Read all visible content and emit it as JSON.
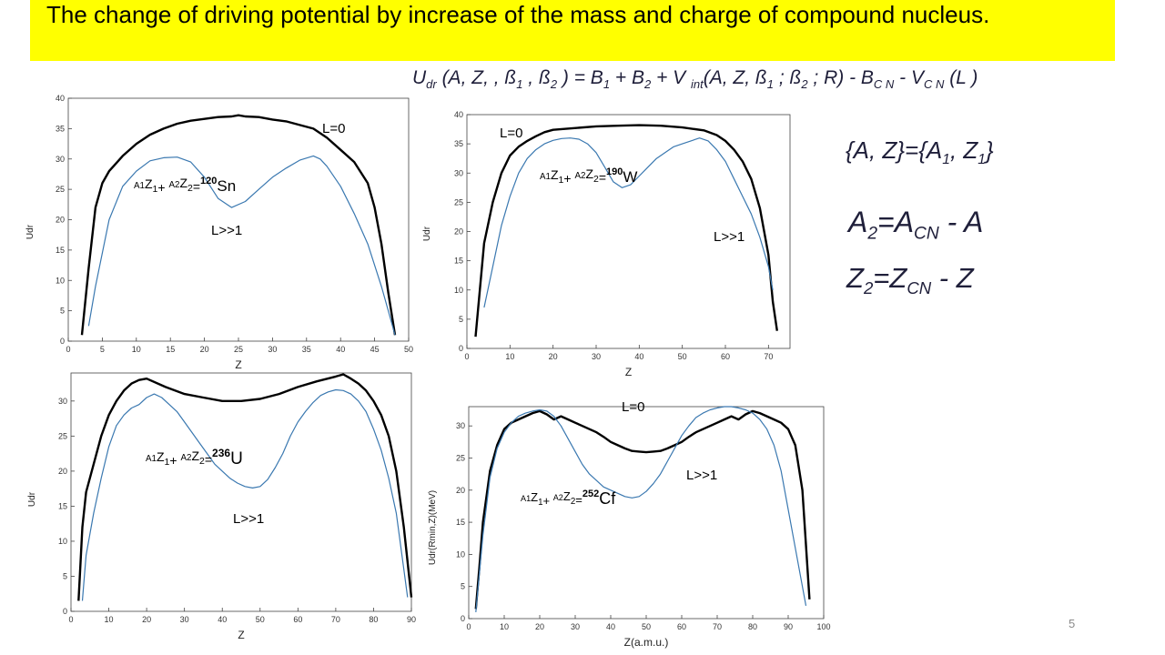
{
  "slide": {
    "title": "The change of driving potential by increase of the mass and charge of compound nucleus.",
    "formula": "U dr (A, Z, , ß1 , ß2 ) = B1 + B2 + V int(A, Z, ß1 ; ß2 ; R) - BC N - VC N (L )",
    "set_relation": "{A, Z}={A1, Z1}",
    "a2_relation": "A2=ACN - A",
    "z2_relation": "Z2=ZCN - Z",
    "page_number": "5"
  },
  "colors": {
    "banner": "#ffff00",
    "l0_line": "#000000",
    "lbig_line": "#3a78b0",
    "formula_text": "#1f1f3a"
  },
  "chart_data": [
    {
      "type": "line",
      "id": "sn",
      "xlabel": "Z",
      "ylabel": "Udr",
      "xlim": [
        0,
        50
      ],
      "ylim": [
        0,
        40
      ],
      "xticks": [
        0,
        5,
        10,
        15,
        20,
        25,
        30,
        35,
        40,
        45,
        50
      ],
      "yticks": [
        0,
        5,
        10,
        15,
        20,
        25,
        30,
        35,
        40
      ],
      "reaction": {
        "prefix": "A1Z1+ A2Z2=",
        "mass": "120",
        "element": "Sn"
      },
      "l0_label": "L=0",
      "lbig_label": "L>>1",
      "series": [
        {
          "name": "L=0",
          "x": [
            2,
            3,
            4,
            5,
            6,
            8,
            10,
            12,
            14,
            16,
            18,
            20,
            22,
            24,
            25,
            26,
            28,
            30,
            32,
            34,
            36,
            38,
            40,
            42,
            44,
            45,
            46,
            47,
            48
          ],
          "y": [
            1,
            12,
            22,
            26,
            28,
            30.5,
            32.5,
            34,
            35,
            35.8,
            36.3,
            36.6,
            36.9,
            37,
            37.2,
            37,
            36.9,
            36.5,
            36.2,
            35.6,
            35,
            33.5,
            31.5,
            29.5,
            26,
            22,
            16,
            8,
            1
          ]
        },
        {
          "name": "L>>1",
          "x": [
            3,
            4,
            6,
            8,
            10,
            12,
            14,
            16,
            18,
            20,
            22,
            24,
            26,
            28,
            30,
            32,
            34,
            36,
            37,
            38,
            40,
            42,
            44,
            46,
            47,
            48
          ],
          "y": [
            2.5,
            9,
            20,
            25.5,
            28,
            29.7,
            30.2,
            30.3,
            29.5,
            27,
            23.5,
            22,
            23,
            25,
            27,
            28.5,
            29.8,
            30.5,
            30,
            28.8,
            25.5,
            21,
            16,
            9,
            5,
            1
          ]
        }
      ]
    },
    {
      "type": "line",
      "id": "w",
      "xlabel": "Z",
      "ylabel": "Udr",
      "xlim": [
        0,
        75
      ],
      "ylim": [
        0,
        40
      ],
      "xticks": [
        0,
        10,
        20,
        30,
        40,
        50,
        60,
        70
      ],
      "yticks": [
        0,
        5,
        10,
        15,
        20,
        25,
        30,
        35,
        40
      ],
      "reaction": {
        "prefix": "A1Z1+ A2Z2=",
        "mass": "190",
        "element": "W"
      },
      "l0_label": "L=0",
      "lbig_label": "L>>1",
      "series": [
        {
          "name": "L=0",
          "x": [
            2,
            3,
            4,
            6,
            8,
            10,
            12,
            14,
            16,
            18,
            20,
            25,
            30,
            35,
            40,
            45,
            50,
            55,
            58,
            60,
            62,
            64,
            66,
            68,
            70,
            71,
            72
          ],
          "y": [
            2,
            10,
            18,
            25,
            30,
            33,
            34.5,
            35.5,
            36.3,
            37,
            37.4,
            37.7,
            38,
            38.1,
            38.2,
            38.1,
            37.8,
            37.3,
            36.5,
            35.5,
            34,
            32,
            29,
            24,
            16,
            8,
            3
          ]
        },
        {
          "name": "L>>1",
          "x": [
            4,
            6,
            8,
            10,
            12,
            14,
            16,
            18,
            20,
            22,
            24,
            26,
            28,
            30,
            32,
            34,
            36,
            38,
            40,
            42,
            44,
            46,
            48,
            50,
            52,
            54,
            56,
            58,
            60,
            62,
            64,
            66,
            68,
            70,
            71
          ],
          "y": [
            7,
            14,
            21,
            26,
            30,
            32.5,
            34,
            35,
            35.6,
            35.9,
            36,
            35.8,
            35,
            33.5,
            31,
            28.5,
            27.5,
            28,
            29.5,
            31,
            32.5,
            33.5,
            34.5,
            35,
            35.5,
            36,
            35.5,
            34,
            32,
            29,
            26,
            23,
            19,
            14,
            10
          ]
        }
      ]
    },
    {
      "type": "line",
      "id": "u",
      "xlabel": "Z",
      "ylabel": "Udr",
      "xlim": [
        0,
        90
      ],
      "ylim": [
        0,
        34
      ],
      "xticks": [
        0,
        10,
        20,
        30,
        40,
        50,
        60,
        70,
        80,
        90
      ],
      "yticks": [
        0,
        5,
        10,
        15,
        20,
        25,
        30
      ],
      "reaction": {
        "prefix": "A1Z1+ A2Z2=",
        "mass": "236",
        "element": "U"
      },
      "l0_label": "",
      "lbig_label": "L>>1",
      "series": [
        {
          "name": "L=0",
          "x": [
            2,
            3,
            4,
            6,
            8,
            10,
            12,
            14,
            16,
            18,
            20,
            25,
            30,
            35,
            40,
            45,
            50,
            55,
            60,
            65,
            70,
            72,
            74,
            76,
            78,
            80,
            82,
            84,
            86,
            88,
            90
          ],
          "y": [
            1.5,
            12,
            17,
            21,
            25,
            28,
            30,
            31.5,
            32.5,
            33,
            33.2,
            32,
            31,
            30.5,
            30,
            30,
            30.3,
            31,
            32,
            32.8,
            33.5,
            33.8,
            33.2,
            32.5,
            31.5,
            30,
            28,
            25,
            20,
            12,
            2
          ]
        },
        {
          "name": "L>>1",
          "x": [
            3,
            4,
            6,
            8,
            10,
            12,
            14,
            16,
            18,
            20,
            22,
            24,
            26,
            28,
            30,
            32,
            34,
            36,
            38,
            40,
            42,
            44,
            46,
            48,
            50,
            52,
            54,
            56,
            58,
            60,
            62,
            64,
            66,
            68,
            70,
            72,
            74,
            76,
            78,
            80,
            82,
            84,
            86,
            88,
            89
          ],
          "y": [
            1.5,
            8,
            14,
            19,
            23.5,
            26.5,
            28,
            29,
            29.5,
            30.5,
            31,
            30.5,
            29.5,
            28.5,
            27,
            25.5,
            24,
            22.5,
            21,
            20,
            19,
            18.3,
            17.8,
            17.6,
            17.8,
            18.8,
            20.5,
            22.5,
            25,
            27,
            28.5,
            29.8,
            30.8,
            31.3,
            31.6,
            31.5,
            31,
            30,
            28.5,
            26,
            23,
            19,
            14,
            6,
            2
          ]
        }
      ]
    },
    {
      "type": "line",
      "id": "cf",
      "xlabel": "Z(a.m.u.)",
      "ylabel": "Udr(Rmin,Z)(MeV)",
      "xlim": [
        0,
        100
      ],
      "ylim": [
        0,
        33
      ],
      "xticks": [
        0,
        10,
        20,
        30,
        40,
        50,
        60,
        70,
        80,
        90,
        100
      ],
      "yticks": [
        0,
        5,
        10,
        15,
        20,
        25,
        30
      ],
      "reaction": {
        "prefix": "A1Z1+ A2Z2=",
        "mass": "252",
        "element": "Cf"
      },
      "l0_label": "L=0",
      "lbig_label": "L>>1",
      "series": [
        {
          "name": "L=0",
          "x": [
            2,
            3,
            4,
            6,
            8,
            10,
            12,
            14,
            16,
            18,
            20,
            22,
            24,
            26,
            28,
            30,
            32,
            34,
            36,
            38,
            40,
            42,
            44,
            46,
            48,
            50,
            52,
            54,
            56,
            58,
            60,
            62,
            64,
            66,
            68,
            70,
            72,
            74,
            76,
            78,
            80,
            82,
            84,
            86,
            88,
            90,
            92,
            94,
            96
          ],
          "y": [
            1.5,
            8,
            15,
            23,
            27,
            29.5,
            30.5,
            31,
            31.5,
            32,
            32.3,
            31.8,
            31,
            31.5,
            31,
            30.5,
            30,
            29.5,
            29,
            28.3,
            27.5,
            27,
            26.5,
            26.1,
            26,
            25.9,
            26,
            26.1,
            26.5,
            27,
            27.5,
            28.3,
            29,
            29.5,
            30,
            30.5,
            31,
            31.5,
            31,
            31.8,
            32.3,
            32,
            31.5,
            31,
            30.5,
            29.5,
            27,
            20,
            3
          ]
        },
        {
          "name": "L>>1",
          "x": [
            2,
            3,
            4,
            6,
            8,
            10,
            12,
            14,
            16,
            18,
            20,
            22,
            24,
            26,
            28,
            30,
            32,
            34,
            36,
            38,
            40,
            42,
            44,
            46,
            48,
            50,
            52,
            54,
            56,
            58,
            60,
            62,
            64,
            66,
            68,
            70,
            72,
            74,
            76,
            78,
            80,
            82,
            84,
            86,
            88,
            90,
            92,
            94,
            95
          ],
          "y": [
            1,
            7,
            13,
            22,
            26.5,
            29,
            30.5,
            31.5,
            32,
            32.3,
            32.5,
            32.3,
            31.5,
            30,
            28,
            26,
            24,
            22.5,
            21.5,
            20.5,
            20,
            19.5,
            19,
            18.8,
            19,
            19.8,
            21,
            22.5,
            24.5,
            26.5,
            28.5,
            30,
            31.3,
            32,
            32.5,
            32.8,
            33,
            33,
            32.8,
            32.5,
            32,
            31,
            29.5,
            27,
            23,
            17,
            11,
            5,
            2
          ]
        }
      ]
    }
  ]
}
